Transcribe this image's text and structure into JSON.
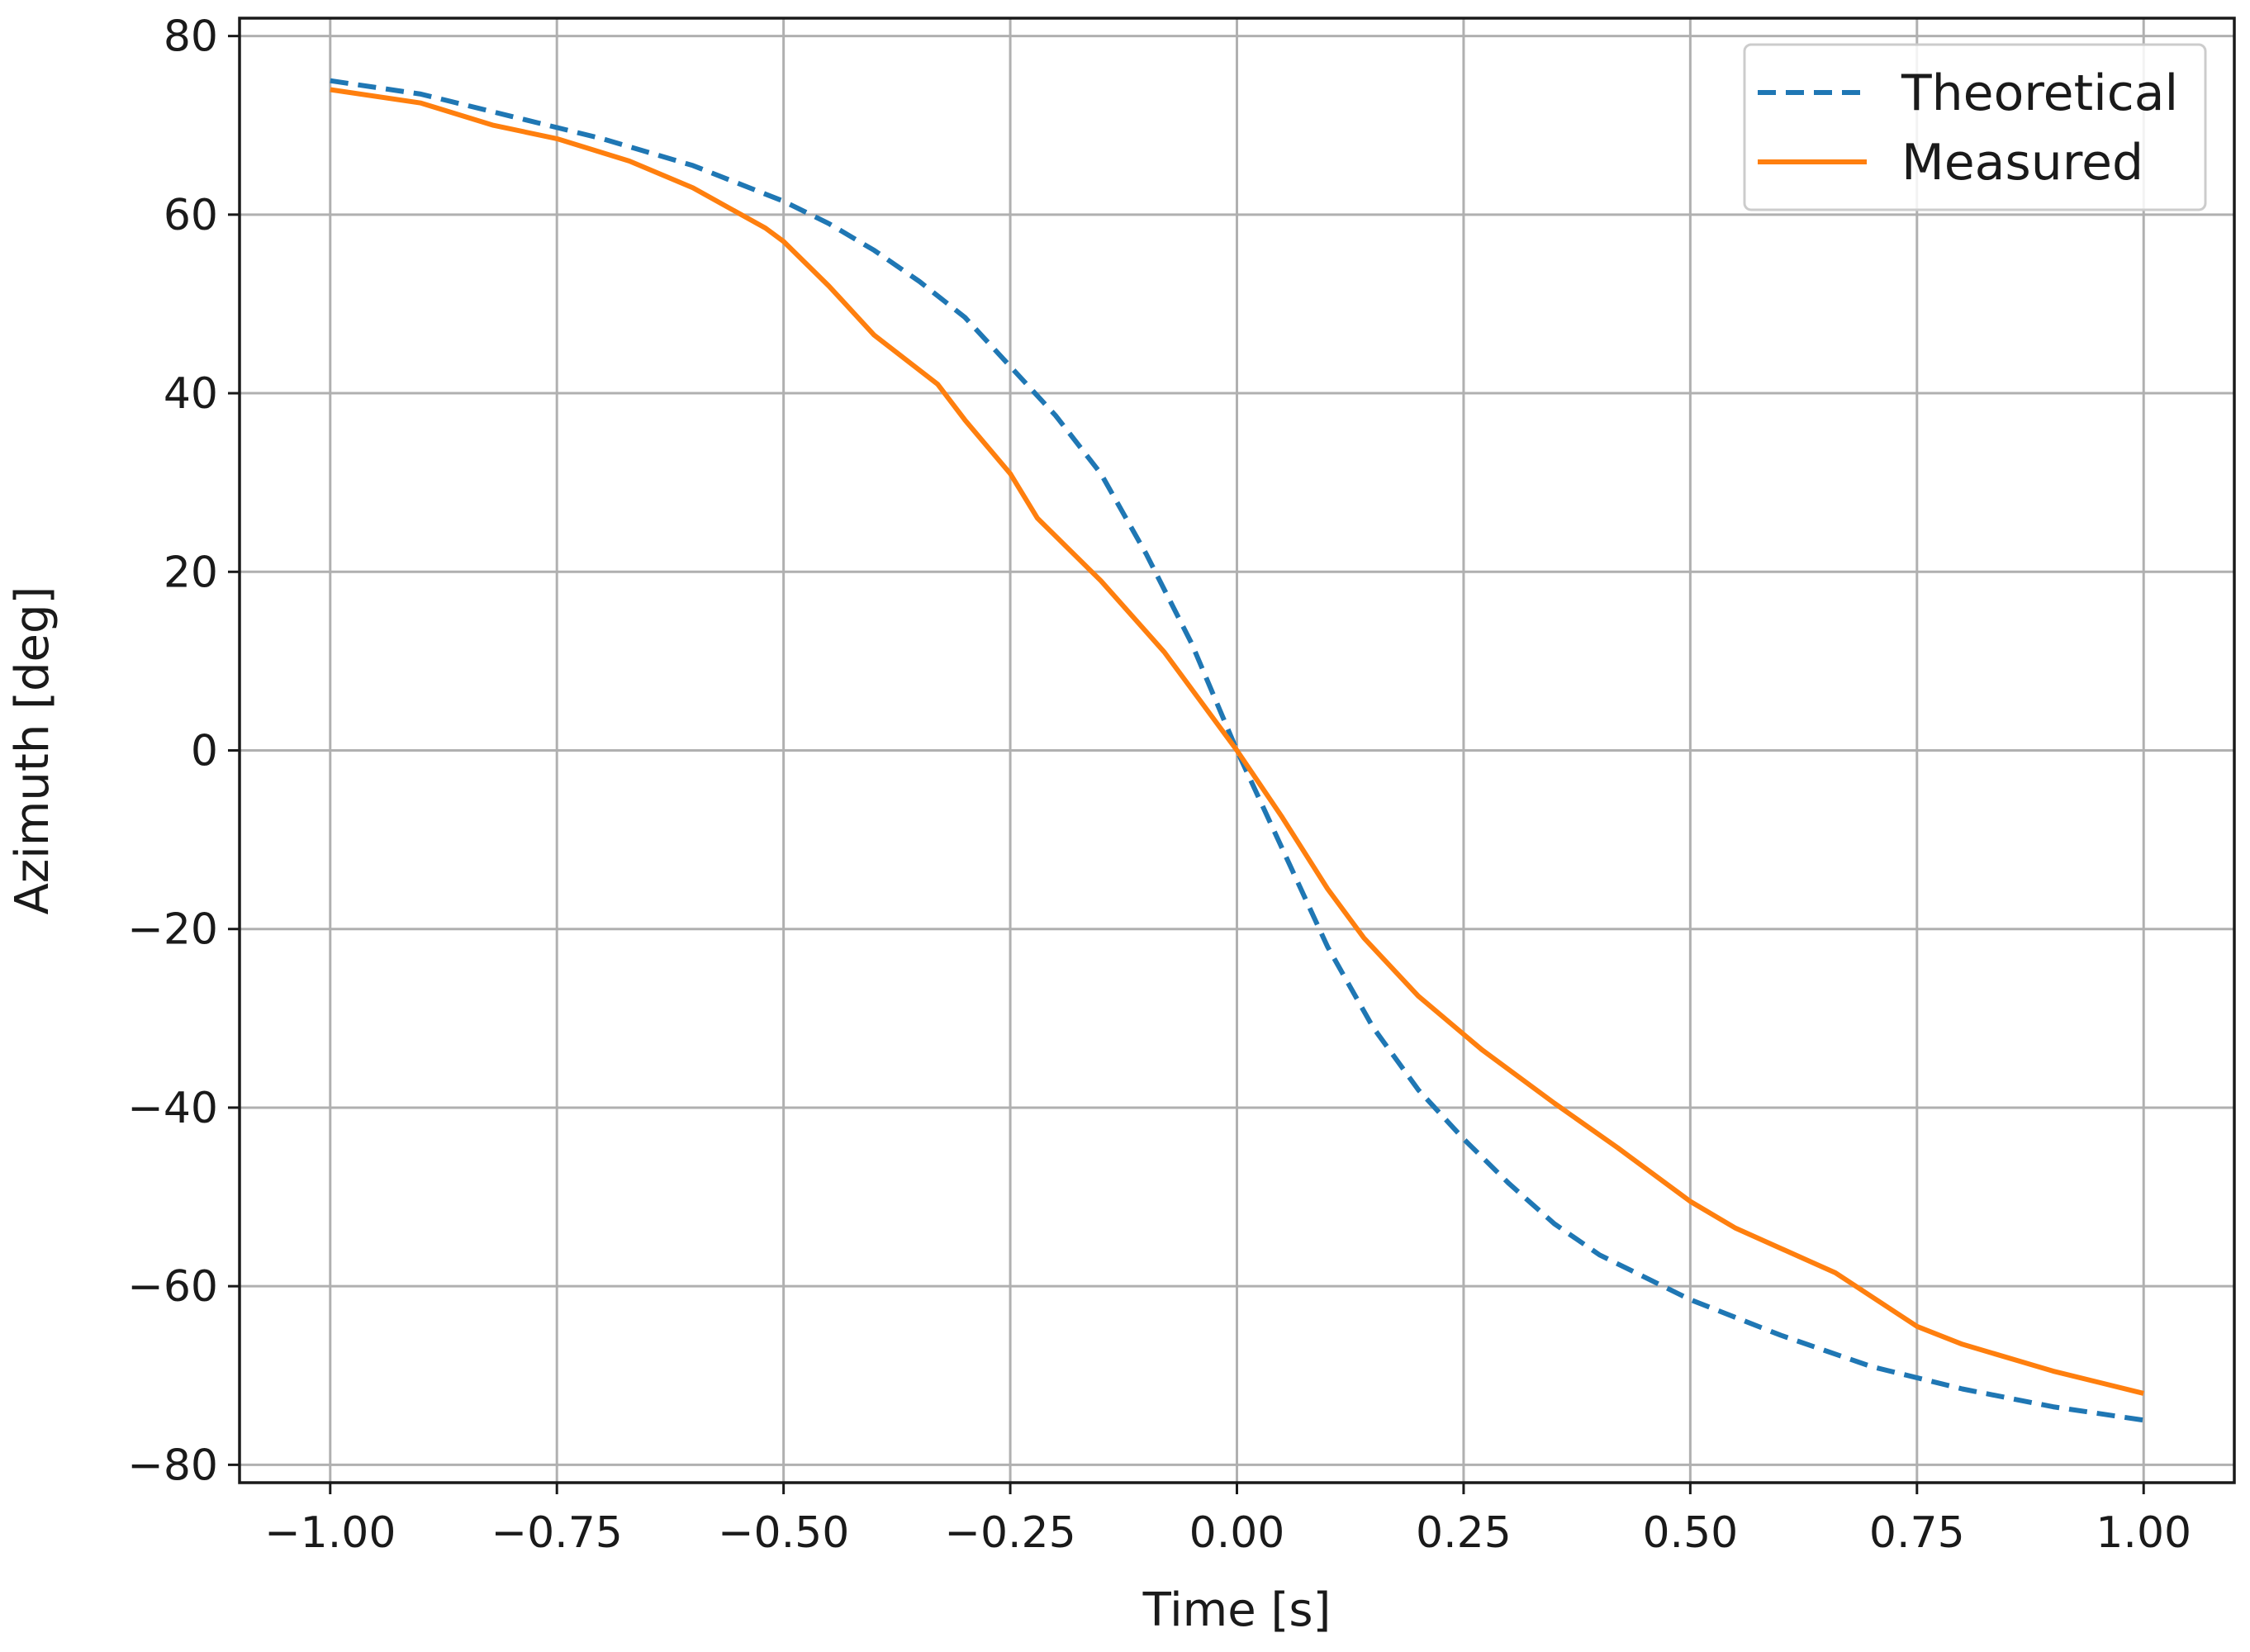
{
  "chart_data": {
    "type": "line",
    "title": "",
    "xlabel": "Time [s]",
    "ylabel": "Azimuth [deg]",
    "xlim": [
      -1.1,
      1.1
    ],
    "ylim": [
      -82,
      82
    ],
    "x_ticks": [
      -1.0,
      -0.75,
      -0.5,
      -0.25,
      0.0,
      0.25,
      0.5,
      0.75,
      1.0
    ],
    "x_tick_labels": [
      "−1.00",
      "−0.75",
      "−0.50",
      "−0.25",
      "0.00",
      "0.25",
      "0.50",
      "0.75",
      "1.00"
    ],
    "y_ticks": [
      -80,
      -60,
      -40,
      -20,
      0,
      20,
      40,
      60,
      80
    ],
    "y_tick_labels": [
      "−80",
      "−60",
      "−40",
      "−20",
      "0",
      "20",
      "40",
      "60",
      "80"
    ],
    "grid": true,
    "legend_position": "top-right",
    "series": [
      {
        "name": "Theoretical",
        "color": "#1f77b4",
        "style": "dashed",
        "points": [
          [
            -1.0,
            75.0
          ],
          [
            -0.9,
            73.5
          ],
          [
            -0.8,
            71.0
          ],
          [
            -0.7,
            68.5
          ],
          [
            -0.6,
            65.5
          ],
          [
            -0.5,
            61.5
          ],
          [
            -0.45,
            59.0
          ],
          [
            -0.4,
            56.0
          ],
          [
            -0.35,
            52.5
          ],
          [
            -0.3,
            48.5
          ],
          [
            -0.25,
            43.0
          ],
          [
            -0.2,
            37.5
          ],
          [
            -0.15,
            31.0
          ],
          [
            -0.1,
            22.0
          ],
          [
            -0.05,
            12.0
          ],
          [
            0.0,
            0.0
          ],
          [
            0.05,
            -11.0
          ],
          [
            0.1,
            -22.0
          ],
          [
            0.15,
            -31.0
          ],
          [
            0.2,
            -38.0
          ],
          [
            0.25,
            -43.5
          ],
          [
            0.3,
            -48.5
          ],
          [
            0.35,
            -53.0
          ],
          [
            0.4,
            -56.5
          ],
          [
            0.5,
            -61.5
          ],
          [
            0.6,
            -65.5
          ],
          [
            0.7,
            -69.0
          ],
          [
            0.8,
            -71.5
          ],
          [
            0.9,
            -73.5
          ],
          [
            1.0,
            -75.0
          ]
        ]
      },
      {
        "name": "Measured",
        "color": "#ff7f0e",
        "style": "solid",
        "points": [
          [
            -1.0,
            74.0
          ],
          [
            -0.9,
            72.5
          ],
          [
            -0.82,
            70.0
          ],
          [
            -0.75,
            68.5
          ],
          [
            -0.67,
            66.0
          ],
          [
            -0.6,
            63.0
          ],
          [
            -0.52,
            58.5
          ],
          [
            -0.5,
            57.0
          ],
          [
            -0.45,
            52.0
          ],
          [
            -0.4,
            46.5
          ],
          [
            -0.33,
            41.0
          ],
          [
            -0.3,
            37.0
          ],
          [
            -0.25,
            31.0
          ],
          [
            -0.22,
            26.0
          ],
          [
            -0.15,
            19.0
          ],
          [
            -0.08,
            11.0
          ],
          [
            -0.04,
            5.5
          ],
          [
            0.0,
            0.0
          ],
          [
            0.05,
            -7.5
          ],
          [
            0.1,
            -15.5
          ],
          [
            0.14,
            -21.0
          ],
          [
            0.2,
            -27.5
          ],
          [
            0.27,
            -33.5
          ],
          [
            0.35,
            -39.5
          ],
          [
            0.42,
            -44.5
          ],
          [
            0.5,
            -50.5
          ],
          [
            0.55,
            -53.5
          ],
          [
            0.66,
            -58.5
          ],
          [
            0.75,
            -64.5
          ],
          [
            0.8,
            -66.5
          ],
          [
            0.9,
            -69.5
          ],
          [
            1.0,
            -72.0
          ]
        ]
      }
    ]
  }
}
